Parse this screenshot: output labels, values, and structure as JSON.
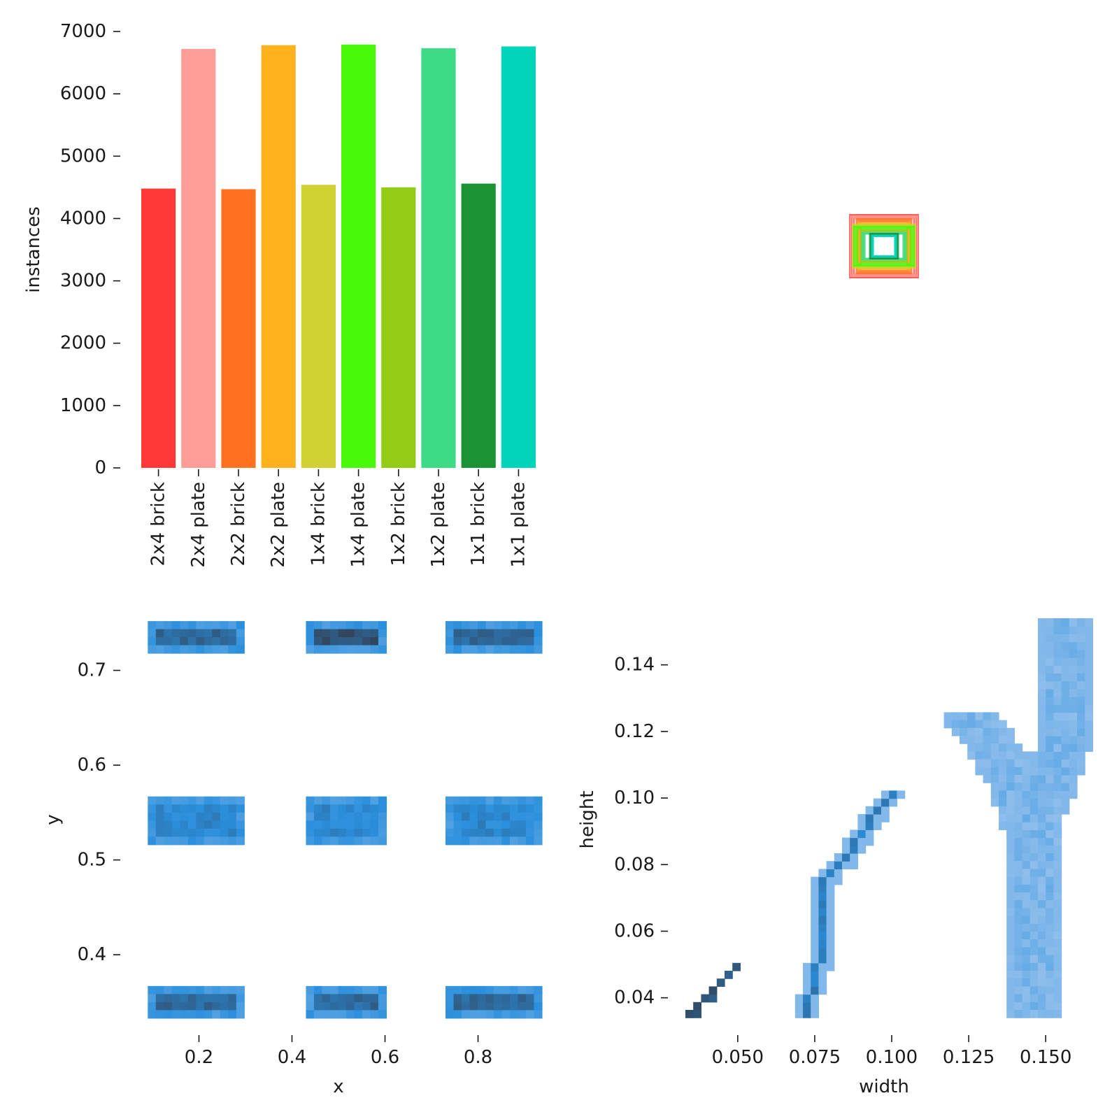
{
  "chart_data": [
    {
      "type": "bar",
      "panel": "class-counts",
      "ylabel": "instances",
      "xlabel": "",
      "ylim": [
        0,
        7000
      ],
      "yticks": [
        "0",
        "1000",
        "2000",
        "3000",
        "4000",
        "5000",
        "6000",
        "7000"
      ],
      "grid": false,
      "categories": [
        "2x4 brick",
        "2x4 plate",
        "2x2 brick",
        "2x2 plate",
        "1x4 brick",
        "1x4 plate",
        "1x2 brick",
        "1x2 plate",
        "1x1 brick",
        "1x1 plate"
      ],
      "values": [
        4480,
        6720,
        4470,
        6780,
        4540,
        6790,
        4500,
        6730,
        4560,
        6760
      ],
      "colors": [
        "#ff3838",
        "#ff9d97",
        "#ff701f",
        "#ffb21d",
        "#cfd231",
        "#48f90a",
        "#92cc17",
        "#3ddb86",
        "#1a9334",
        "#00d4bb"
      ]
    },
    {
      "type": "boxes",
      "panel": "box-overlay",
      "description_note": "",
      "boxes": [
        {
          "class": "2x4 brick",
          "color": "#ff3838",
          "w": 0.125,
          "h": 0.115
        },
        {
          "class": "2x4 plate",
          "color": "#ff9d97",
          "w": 0.122,
          "h": 0.11
        },
        {
          "class": "2x2 brick",
          "color": "#ff701f",
          "w": 0.1,
          "h": 0.1
        },
        {
          "class": "2x2 plate",
          "color": "#ffb21d",
          "w": 0.095,
          "h": 0.085
        },
        {
          "class": "1x4 brick",
          "color": "#cfd231",
          "w": 0.115,
          "h": 0.08
        },
        {
          "class": "1x4 plate",
          "color": "#48f90a",
          "w": 0.11,
          "h": 0.072
        },
        {
          "class": "1x2 brick",
          "color": "#92cc17",
          "w": 0.085,
          "h": 0.06
        },
        {
          "class": "1x2 plate",
          "color": "#3ddb86",
          "w": 0.08,
          "h": 0.05
        },
        {
          "class": "1x1 brick",
          "color": "#1a9334",
          "w": 0.052,
          "h": 0.046
        },
        {
          "class": "1x1 plate",
          "color": "#00d4bb",
          "w": 0.045,
          "h": 0.04
        }
      ]
    },
    {
      "type": "heatmap",
      "panel": "xy-location",
      "xlabel": "x",
      "ylabel": "y",
      "xlim": [
        0.07,
        0.93
      ],
      "ylim": [
        0.33,
        0.755
      ],
      "xticks": [
        "0.2",
        "0.4",
        "0.6",
        "0.8"
      ],
      "yticks": [
        "0.4",
        "0.5",
        "0.6",
        "0.7"
      ],
      "color": "#2a8fdc",
      "clusters": [
        {
          "x": [
            0.09,
            0.29
          ],
          "y": [
            0.72,
            0.752
          ],
          "density": "high"
        },
        {
          "x": [
            0.43,
            0.595
          ],
          "y": [
            0.72,
            0.752
          ],
          "density": "very-high"
        },
        {
          "x": [
            0.73,
            0.93
          ],
          "y": [
            0.72,
            0.752
          ],
          "density": "high"
        },
        {
          "x": [
            0.09,
            0.29
          ],
          "y": [
            0.519,
            0.567
          ],
          "density": "medium"
        },
        {
          "x": [
            0.43,
            0.595
          ],
          "y": [
            0.519,
            0.567
          ],
          "density": "medium"
        },
        {
          "x": [
            0.73,
            0.93
          ],
          "y": [
            0.519,
            0.567
          ],
          "density": "medium"
        },
        {
          "x": [
            0.09,
            0.29
          ],
          "y": [
            0.335,
            0.367
          ],
          "density": "high"
        },
        {
          "x": [
            0.43,
            0.595
          ],
          "y": [
            0.335,
            0.367
          ],
          "density": "high"
        },
        {
          "x": [
            0.73,
            0.93
          ],
          "y": [
            0.335,
            0.367
          ],
          "density": "high"
        }
      ]
    },
    {
      "type": "heatmap",
      "panel": "width-height",
      "xlabel": "width",
      "ylabel": "height",
      "xlim": [
        0.033,
        0.162
      ],
      "ylim": [
        0.033,
        0.154
      ],
      "xticks": [
        "0.050",
        "0.075",
        "0.100",
        "0.125",
        "0.150"
      ],
      "yticks": [
        "0.04",
        "0.06",
        "0.08",
        "0.10",
        "0.12",
        "0.14"
      ],
      "color": "#2a8fdc",
      "streaks": [
        {
          "name": "",
          "points": [
            [
              0.035,
              0.035
            ],
            [
              0.05,
              0.05
            ]
          ],
          "density": "very-high"
        },
        {
          "name": "",
          "points": [
            [
              0.072,
              0.035
            ],
            [
              0.078,
              0.055
            ],
            [
              0.078,
              0.075
            ],
            [
              0.085,
              0.082
            ],
            [
              0.1,
              0.101
            ]
          ],
          "density": "high"
        },
        {
          "name": "",
          "points": [
            [
              0.125,
              0.125
            ],
            [
              0.133,
              0.116
            ],
            [
              0.14,
              0.104
            ],
            [
              0.145,
              0.09
            ],
            [
              0.145,
              0.07
            ],
            [
              0.145,
              0.035
            ]
          ],
          "density": "low"
        },
        {
          "name": "",
          "points": [
            [
              0.145,
              0.09
            ],
            [
              0.152,
              0.105
            ],
            [
              0.157,
              0.12
            ],
            [
              0.157,
              0.152
            ]
          ],
          "density": "low"
        }
      ]
    }
  ]
}
